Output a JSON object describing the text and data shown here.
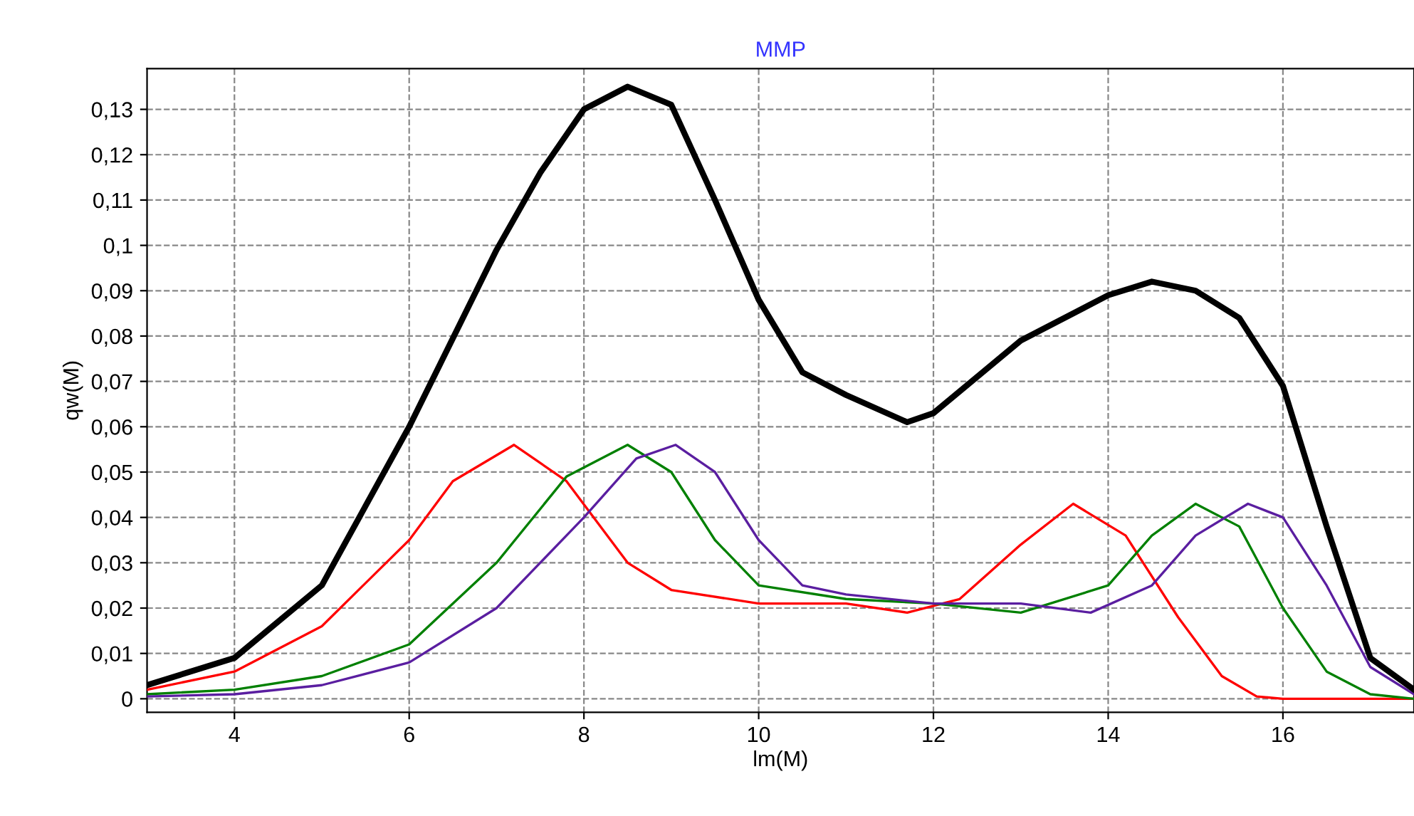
{
  "chart_data": {
    "type": "line",
    "title": "MMP",
    "xlabel": "lm(M)",
    "ylabel": "qw(M)",
    "xlim": [
      3,
      17.5
    ],
    "ylim": [
      -0.003,
      0.139
    ],
    "xticks": [
      4,
      6,
      8,
      10,
      12,
      14,
      16
    ],
    "yticks": [
      {
        "value": 0,
        "label": "0"
      },
      {
        "value": 0.01,
        "label": "0,01"
      },
      {
        "value": 0.02,
        "label": "0,02"
      },
      {
        "value": 0.03,
        "label": "0,03"
      },
      {
        "value": 0.04,
        "label": "0,04"
      },
      {
        "value": 0.05,
        "label": "0,05"
      },
      {
        "value": 0.06,
        "label": "0,06"
      },
      {
        "value": 0.07,
        "label": "0,07"
      },
      {
        "value": 0.08,
        "label": "0,08"
      },
      {
        "value": 0.09,
        "label": "0,09"
      },
      {
        "value": 0.1,
        "label": "0,1"
      },
      {
        "value": 0.11,
        "label": "0,11"
      },
      {
        "value": 0.12,
        "label": "0,12"
      },
      {
        "value": 0.13,
        "label": "0,13"
      }
    ],
    "grid": true,
    "marker": "none",
    "line_style": "solid",
    "series": [
      {
        "color": "#000000",
        "x": [
          3,
          4,
          5,
          6,
          7,
          7.5,
          8,
          8.5,
          9,
          9.5,
          10,
          10.5,
          11,
          11.7,
          12,
          13,
          14,
          14.5,
          15,
          15.5,
          16,
          16.5,
          17,
          17.5
        ],
        "values": [
          0.003,
          0.009,
          0.025,
          0.06,
          0.099,
          0.116,
          0.13,
          0.135,
          0.131,
          0.11,
          0.088,
          0.072,
          0.067,
          0.061,
          0.063,
          0.079,
          0.089,
          0.092,
          0.09,
          0.084,
          0.069,
          0.038,
          0.009,
          0.002
        ]
      },
      {
        "color": "#ff0000",
        "x": [
          3,
          4,
          5,
          6,
          6.5,
          7.2,
          7.8,
          8.5,
          9,
          10,
          11,
          11.7,
          12.3,
          13,
          13.6,
          14.2,
          14.8,
          15.3,
          15.7,
          16,
          17.5
        ],
        "values": [
          0.002,
          0.006,
          0.016,
          0.035,
          0.048,
          0.056,
          0.048,
          0.03,
          0.024,
          0.021,
          0.021,
          0.019,
          0.022,
          0.034,
          0.043,
          0.036,
          0.018,
          0.005,
          0.0005,
          0,
          0
        ]
      },
      {
        "color": "#008000",
        "x": [
          3,
          4,
          5,
          6,
          7,
          7.8,
          8.5,
          9,
          9.5,
          10,
          11,
          12,
          13,
          14,
          14.5,
          15,
          15.5,
          16,
          16.5,
          17,
          17.5
        ],
        "values": [
          0.001,
          0.002,
          0.005,
          0.012,
          0.03,
          0.049,
          0.056,
          0.05,
          0.035,
          0.025,
          0.022,
          0.021,
          0.019,
          0.025,
          0.036,
          0.043,
          0.038,
          0.02,
          0.006,
          0.001,
          0
        ]
      },
      {
        "color": "#5a1ea0",
        "x": [
          3,
          4,
          5,
          6,
          7,
          8,
          8.6,
          9.05,
          9.5,
          10,
          10.5,
          11,
          12,
          13,
          13.8,
          14.5,
          15,
          15.6,
          16,
          16.5,
          17,
          17.5
        ],
        "values": [
          0.0005,
          0.001,
          0.003,
          0.008,
          0.02,
          0.04,
          0.053,
          0.056,
          0.05,
          0.035,
          0.025,
          0.023,
          0.021,
          0.021,
          0.019,
          0.025,
          0.036,
          0.043,
          0.04,
          0.025,
          0.007,
          0.001
        ]
      }
    ]
  }
}
